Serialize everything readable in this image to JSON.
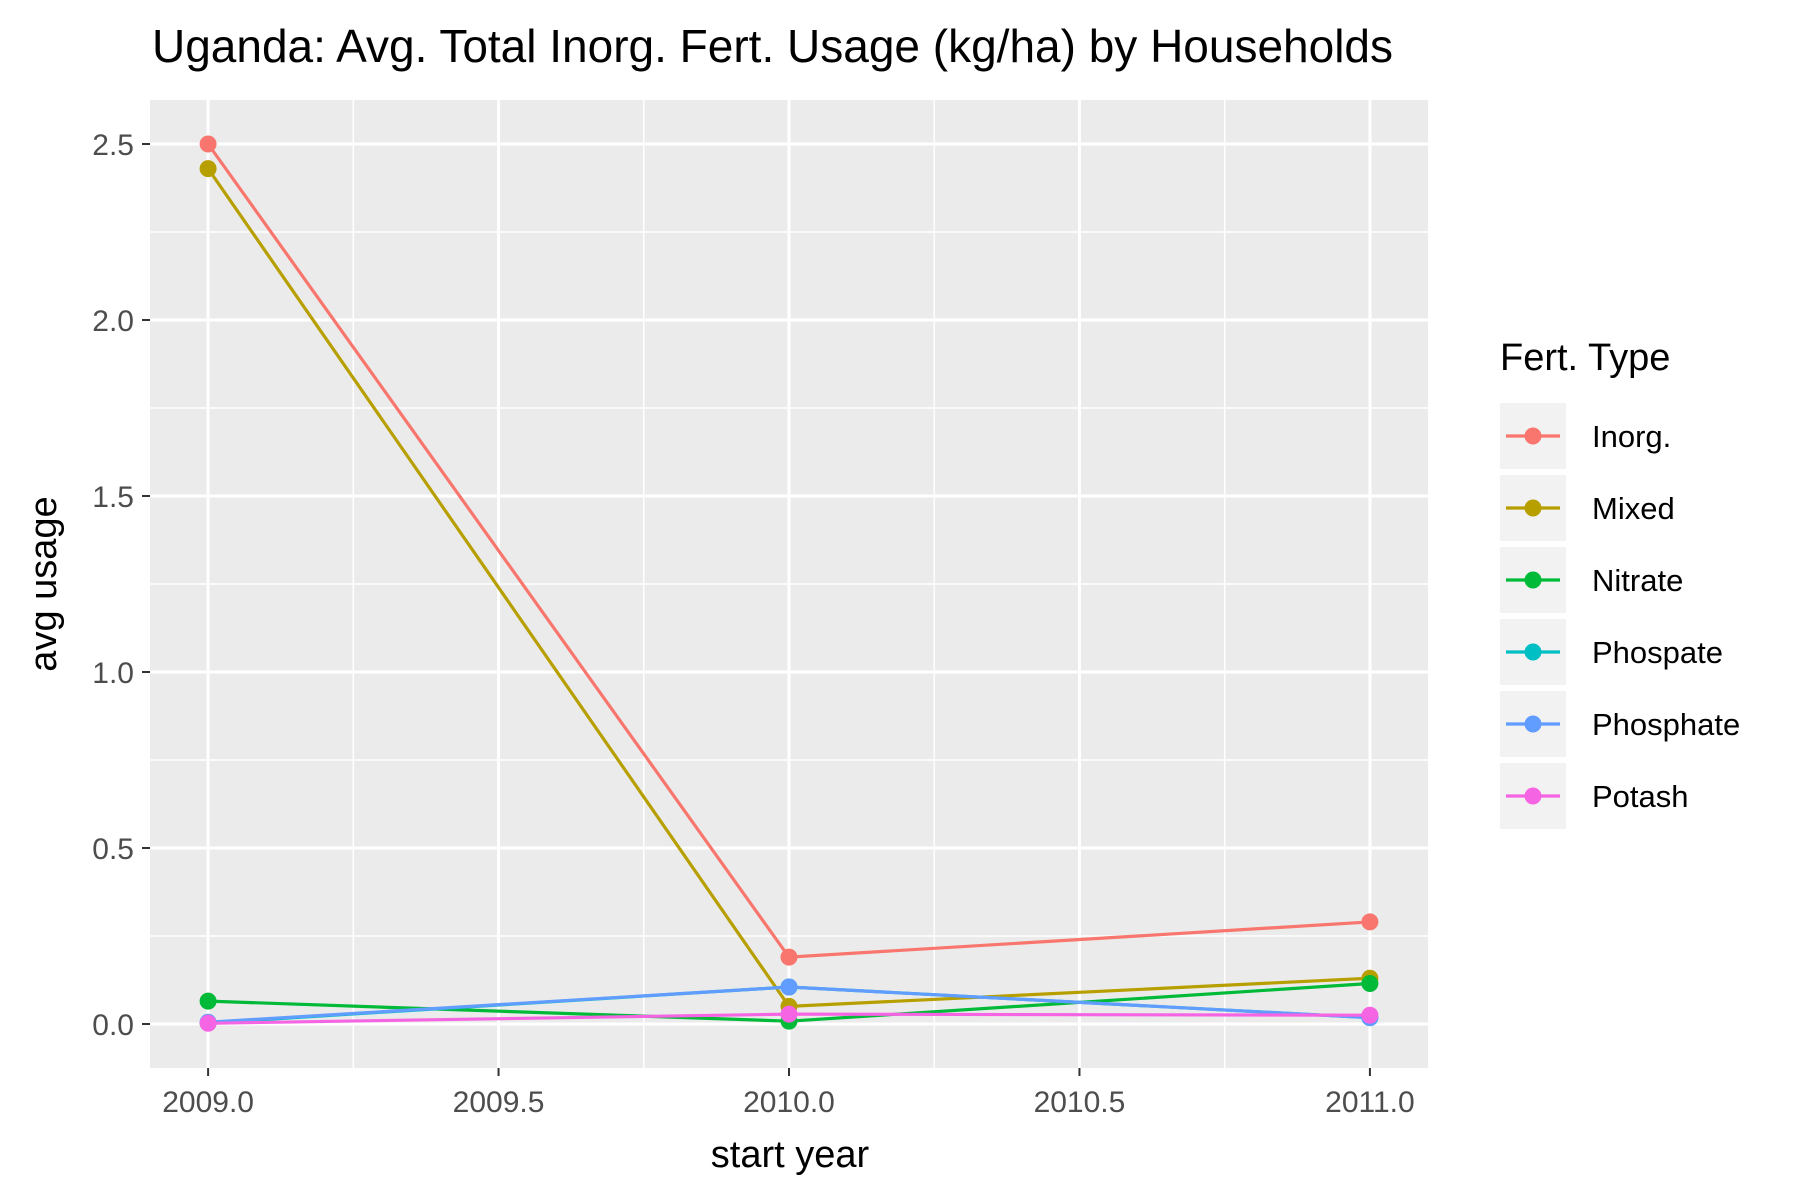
{
  "chart_data": {
    "type": "line",
    "title": "Uganda: Avg. Total Inorg. Fert. Usage (kg/ha) by Households",
    "xlabel": "start year",
    "ylabel": "avg usage",
    "x": [
      2009,
      2010,
      2011
    ],
    "xlim": [
      2008.9,
      2011.1
    ],
    "ylim": [
      -0.125,
      2.625
    ],
    "xticks": [
      2009.0,
      2009.5,
      2010.0,
      2010.5,
      2011.0
    ],
    "xtick_labels": [
      "2009.0",
      "2009.5",
      "2010.0",
      "2010.5",
      "2011.0"
    ],
    "yticks": [
      0.0,
      0.5,
      1.0,
      1.5,
      2.0,
      2.5
    ],
    "ytick_labels": [
      "0.0",
      "0.5",
      "1.0",
      "1.5",
      "2.0",
      "2.5"
    ],
    "grid": true,
    "legend": {
      "title": "Fert. Type",
      "placement": "right"
    },
    "series": [
      {
        "name": "Inorg.",
        "color": "#F8766D",
        "values": [
          2.5,
          0.19,
          0.29
        ]
      },
      {
        "name": "Mixed",
        "color": "#B79F00",
        "values": [
          2.43,
          0.05,
          0.13
        ]
      },
      {
        "name": "Nitrate",
        "color": "#00BA38",
        "values": [
          0.065,
          0.008,
          0.115
        ]
      },
      {
        "name": "Phospate",
        "color": "#00BFC4",
        "values": [
          0.003,
          0.105,
          0.018
        ]
      },
      {
        "name": "Phosphate",
        "color": "#619CFF",
        "values": [
          0.005,
          0.105,
          0.018
        ]
      },
      {
        "name": "Potash",
        "color": "#F564E3",
        "values": [
          0.002,
          0.028,
          0.025
        ]
      }
    ]
  }
}
